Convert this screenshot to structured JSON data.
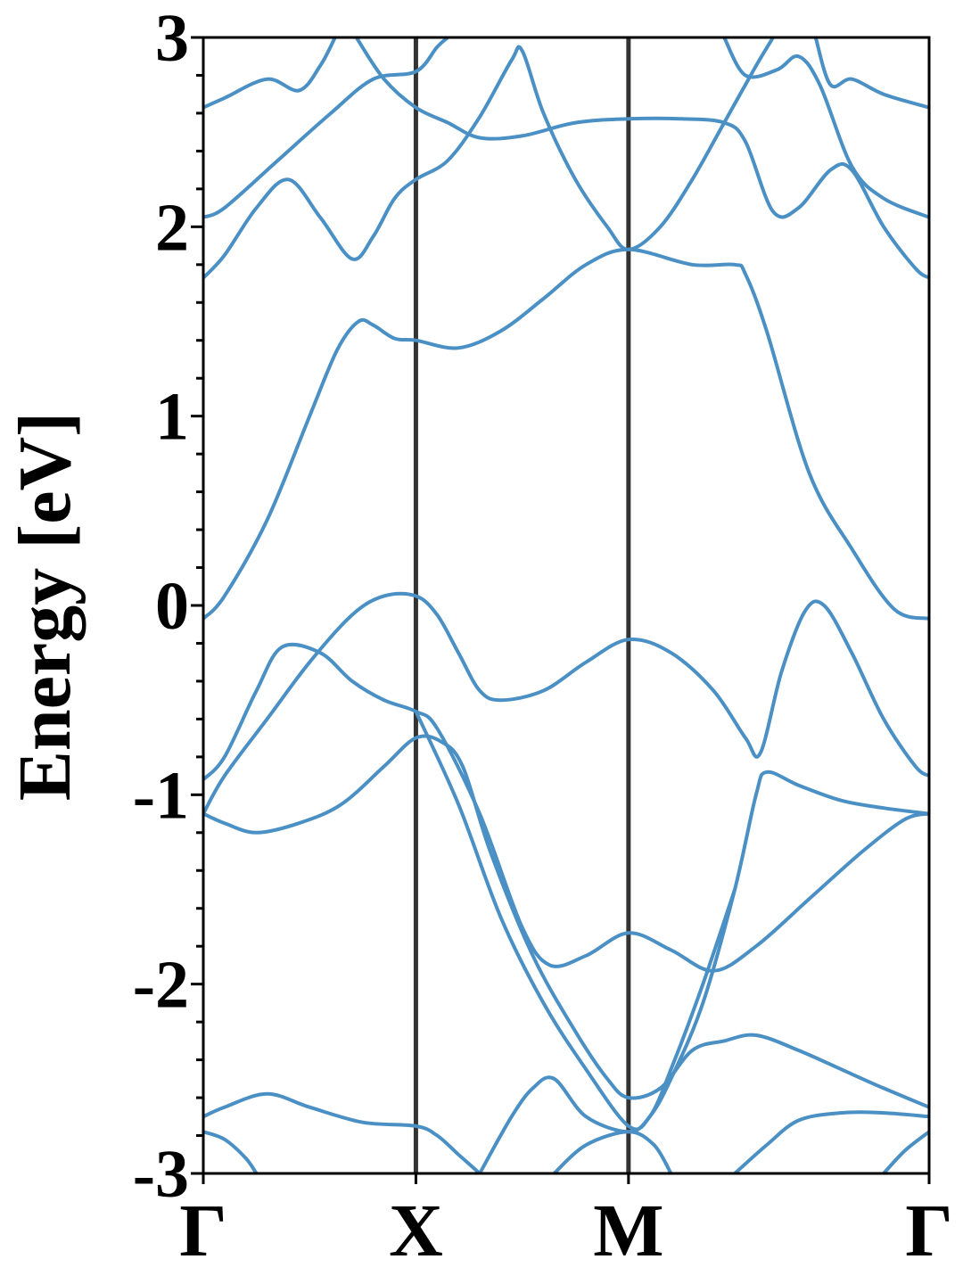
{
  "chart_data": {
    "type": "line",
    "title": "",
    "xlabel": "",
    "ylabel": "Energy [eV]",
    "ylim": [
      -3,
      3
    ],
    "xlim": [
      0,
      3.414
    ],
    "y_ticks": [
      -3,
      -2,
      -1,
      0,
      1,
      2,
      3
    ],
    "y_tick_labels": [
      "-3",
      "-2",
      "-1",
      "0",
      "1",
      "2",
      "3"
    ],
    "y_minor_step": 0.2,
    "high_symmetry_points": [
      {
        "label": "Γ",
        "x": 0
      },
      {
        "label": "X",
        "x": 1.0
      },
      {
        "label": "M",
        "x": 2.0
      },
      {
        "label": "Γ",
        "x": 3.414
      }
    ],
    "grid": false,
    "legend": "none",
    "series": [
      {
        "values": [
          [
            0,
            -0.07
          ],
          [
            0.1,
            0.05
          ],
          [
            0.3,
            0.45
          ],
          [
            0.5,
            1.0
          ],
          [
            0.63,
            1.35
          ],
          [
            0.73,
            1.5
          ],
          [
            0.8,
            1.48
          ],
          [
            0.9,
            1.41
          ],
          [
            1.0,
            1.4
          ],
          [
            1.2,
            1.36
          ],
          [
            1.4,
            1.45
          ],
          [
            1.6,
            1.62
          ],
          [
            1.8,
            1.8
          ],
          [
            2.0,
            1.88
          ],
          [
            2.3,
            1.8
          ],
          [
            2.5,
            1.8
          ],
          [
            2.55,
            1.75
          ],
          [
            2.65,
            1.45
          ],
          [
            2.85,
            0.7
          ],
          [
            3.05,
            0.3
          ],
          [
            3.25,
            -0.02
          ],
          [
            3.414,
            -0.07
          ]
        ]
      },
      {
        "values": [
          [
            0,
            -0.92
          ],
          [
            0.1,
            -0.8
          ],
          [
            0.25,
            -0.45
          ],
          [
            0.37,
            -0.22
          ],
          [
            0.55,
            -0.25
          ],
          [
            0.7,
            -0.4
          ],
          [
            0.85,
            -0.5
          ],
          [
            1.0,
            -0.56
          ],
          [
            1.1,
            -0.65
          ],
          [
            1.3,
            -1.1
          ],
          [
            1.5,
            -1.7
          ],
          [
            1.63,
            -1.9
          ],
          [
            1.8,
            -1.85
          ],
          [
            2.0,
            -1.73
          ],
          [
            2.2,
            -1.82
          ],
          [
            2.4,
            -1.93
          ],
          [
            2.6,
            -1.8
          ],
          [
            2.85,
            -1.55
          ],
          [
            3.1,
            -1.3
          ],
          [
            3.3,
            -1.13
          ],
          [
            3.414,
            -1.1
          ]
        ]
      },
      {
        "values": [
          [
            0,
            -1.1
          ],
          [
            0.1,
            -0.9
          ],
          [
            0.3,
            -0.6
          ],
          [
            0.5,
            -0.3
          ],
          [
            0.7,
            -0.05
          ],
          [
            0.85,
            0.05
          ],
          [
            1.0,
            0.05
          ],
          [
            1.1,
            -0.05
          ],
          [
            1.2,
            -0.25
          ],
          [
            1.3,
            -0.45
          ],
          [
            1.4,
            -0.5
          ],
          [
            1.6,
            -0.45
          ],
          [
            1.8,
            -0.3
          ],
          [
            2.0,
            -0.18
          ],
          [
            2.2,
            -0.25
          ],
          [
            2.4,
            -0.45
          ],
          [
            2.55,
            -0.7
          ],
          [
            2.62,
            -0.78
          ],
          [
            2.72,
            -0.35
          ],
          [
            2.83,
            -0.03
          ],
          [
            2.92,
            0.0
          ],
          [
            3.05,
            -0.25
          ],
          [
            3.2,
            -0.6
          ],
          [
            3.35,
            -0.85
          ],
          [
            3.414,
            -0.9
          ]
        ]
      },
      {
        "values": [
          [
            0,
            -1.1
          ],
          [
            0.1,
            -1.15
          ],
          [
            0.25,
            -1.2
          ],
          [
            0.45,
            -1.15
          ],
          [
            0.65,
            -1.05
          ],
          [
            0.85,
            -0.85
          ],
          [
            1.0,
            -0.7
          ],
          [
            1.12,
            -0.72
          ],
          [
            1.22,
            -0.85
          ],
          [
            1.35,
            -1.3
          ],
          [
            1.55,
            -1.85
          ],
          [
            1.75,
            -2.25
          ],
          [
            1.9,
            -2.5
          ],
          [
            2.0,
            -2.6
          ],
          [
            2.15,
            -2.55
          ],
          [
            2.3,
            -2.35
          ],
          [
            2.45,
            -2.3
          ],
          [
            2.6,
            -2.27
          ],
          [
            2.8,
            -2.35
          ],
          [
            3.0,
            -2.45
          ],
          [
            3.2,
            -2.55
          ],
          [
            3.414,
            -2.65
          ]
        ]
      },
      {
        "values": [
          [
            0,
            -2.7
          ],
          [
            0.1,
            -2.65
          ],
          [
            0.3,
            -2.58
          ],
          [
            0.5,
            -2.65
          ],
          [
            0.75,
            -2.73
          ],
          [
            1.0,
            -2.75
          ],
          [
            1.1,
            -2.8
          ],
          [
            1.2,
            -2.9
          ],
          [
            1.3,
            -3.0
          ]
        ]
      },
      {
        "values": [
          [
            1.3,
            -3.0
          ],
          [
            1.45,
            -2.7
          ],
          [
            1.55,
            -2.55
          ],
          [
            1.65,
            -2.5
          ],
          [
            1.8,
            -2.7
          ],
          [
            2.0,
            -2.78
          ],
          [
            2.1,
            -2.7
          ],
          [
            2.2,
            -2.5
          ],
          [
            2.35,
            -2.1
          ],
          [
            2.5,
            -1.5
          ],
          [
            2.6,
            -1.0
          ],
          [
            2.65,
            -0.88
          ],
          [
            2.8,
            -0.95
          ],
          [
            3.0,
            -1.03
          ],
          [
            3.2,
            -1.07
          ],
          [
            3.414,
            -1.1
          ]
        ]
      },
      {
        "values": [
          [
            1.65,
            -3.0
          ],
          [
            1.8,
            -2.85
          ],
          [
            2.0,
            -2.78
          ],
          [
            2.12,
            -2.85
          ],
          [
            2.2,
            -3.0
          ]
        ]
      },
      {
        "values": [
          [
            1.0,
            -0.56
          ],
          [
            1.2,
            -1.05
          ],
          [
            1.4,
            -1.65
          ],
          [
            1.6,
            -2.1
          ],
          [
            1.8,
            -2.45
          ],
          [
            2.0,
            -2.75
          ],
          [
            2.1,
            -2.7
          ],
          [
            2.2,
            -2.45
          ],
          [
            2.35,
            -2.0
          ],
          [
            2.5,
            -1.5
          ]
        ]
      },
      {
        "values": [
          [
            2.5,
            -3.0
          ],
          [
            2.65,
            -2.85
          ],
          [
            2.8,
            -2.72
          ],
          [
            3.0,
            -2.68
          ],
          [
            3.2,
            -2.68
          ],
          [
            3.414,
            -2.7
          ]
        ]
      },
      {
        "values": [
          [
            0,
            -2.78
          ],
          [
            0.1,
            -2.82
          ],
          [
            0.2,
            -2.92
          ],
          [
            0.25,
            -3.0
          ]
        ]
      },
      {
        "values": [
          [
            3.2,
            -3.0
          ],
          [
            3.3,
            -2.88
          ],
          [
            3.414,
            -2.78
          ]
        ]
      },
      {
        "values": [
          [
            0,
            1.73
          ],
          [
            0.1,
            1.85
          ],
          [
            0.25,
            2.1
          ],
          [
            0.4,
            2.25
          ],
          [
            0.55,
            2.05
          ],
          [
            0.7,
            1.83
          ],
          [
            0.8,
            1.95
          ],
          [
            0.9,
            2.15
          ],
          [
            1.0,
            2.25
          ],
          [
            1.15,
            2.35
          ],
          [
            1.3,
            2.58
          ],
          [
            1.45,
            2.88
          ],
          [
            1.5,
            2.93
          ],
          [
            1.6,
            2.6
          ],
          [
            1.75,
            2.25
          ],
          [
            1.9,
            2.0
          ],
          [
            2.0,
            1.88
          ],
          [
            2.15,
            2.0
          ],
          [
            2.3,
            2.25
          ],
          [
            2.45,
            2.55
          ],
          [
            2.6,
            2.85
          ],
          [
            2.68,
            3.0
          ]
        ]
      },
      {
        "values": [
          [
            0,
            2.05
          ],
          [
            0.1,
            2.1
          ],
          [
            0.35,
            2.35
          ],
          [
            0.6,
            2.6
          ],
          [
            0.8,
            2.78
          ],
          [
            1.0,
            2.82
          ],
          [
            1.1,
            2.95
          ],
          [
            1.15,
            3.0
          ]
        ]
      },
      {
        "values": [
          [
            0,
            2.63
          ],
          [
            0.1,
            2.68
          ],
          [
            0.3,
            2.78
          ],
          [
            0.45,
            2.72
          ],
          [
            0.55,
            2.85
          ],
          [
            0.62,
            3.0
          ]
        ]
      },
      {
        "values": [
          [
            0.72,
            3.0
          ],
          [
            0.85,
            2.78
          ],
          [
            1.0,
            2.63
          ],
          [
            1.15,
            2.55
          ],
          [
            1.3,
            2.47
          ],
          [
            1.5,
            2.48
          ],
          [
            1.75,
            2.55
          ],
          [
            2.0,
            2.57
          ],
          [
            2.25,
            2.57
          ],
          [
            2.45,
            2.55
          ],
          [
            2.55,
            2.45
          ],
          [
            2.68,
            2.08
          ],
          [
            2.8,
            2.1
          ],
          [
            2.95,
            2.3
          ],
          [
            3.05,
            2.3
          ],
          [
            3.2,
            2.0
          ],
          [
            3.35,
            1.78
          ],
          [
            3.414,
            1.73
          ]
        ]
      },
      {
        "values": [
          [
            2.45,
            3.0
          ],
          [
            2.55,
            2.8
          ],
          [
            2.7,
            2.83
          ],
          [
            2.8,
            2.9
          ],
          [
            2.9,
            2.75
          ],
          [
            3.05,
            2.32
          ],
          [
            3.2,
            2.15
          ],
          [
            3.414,
            2.05
          ]
        ]
      },
      {
        "values": [
          [
            2.88,
            3.0
          ],
          [
            2.95,
            2.75
          ],
          [
            3.05,
            2.78
          ],
          [
            3.2,
            2.7
          ],
          [
            3.414,
            2.63
          ]
        ]
      }
    ],
    "colors": {
      "band": "#4a90c4",
      "kline": "#333333",
      "frame": "#000000"
    }
  }
}
